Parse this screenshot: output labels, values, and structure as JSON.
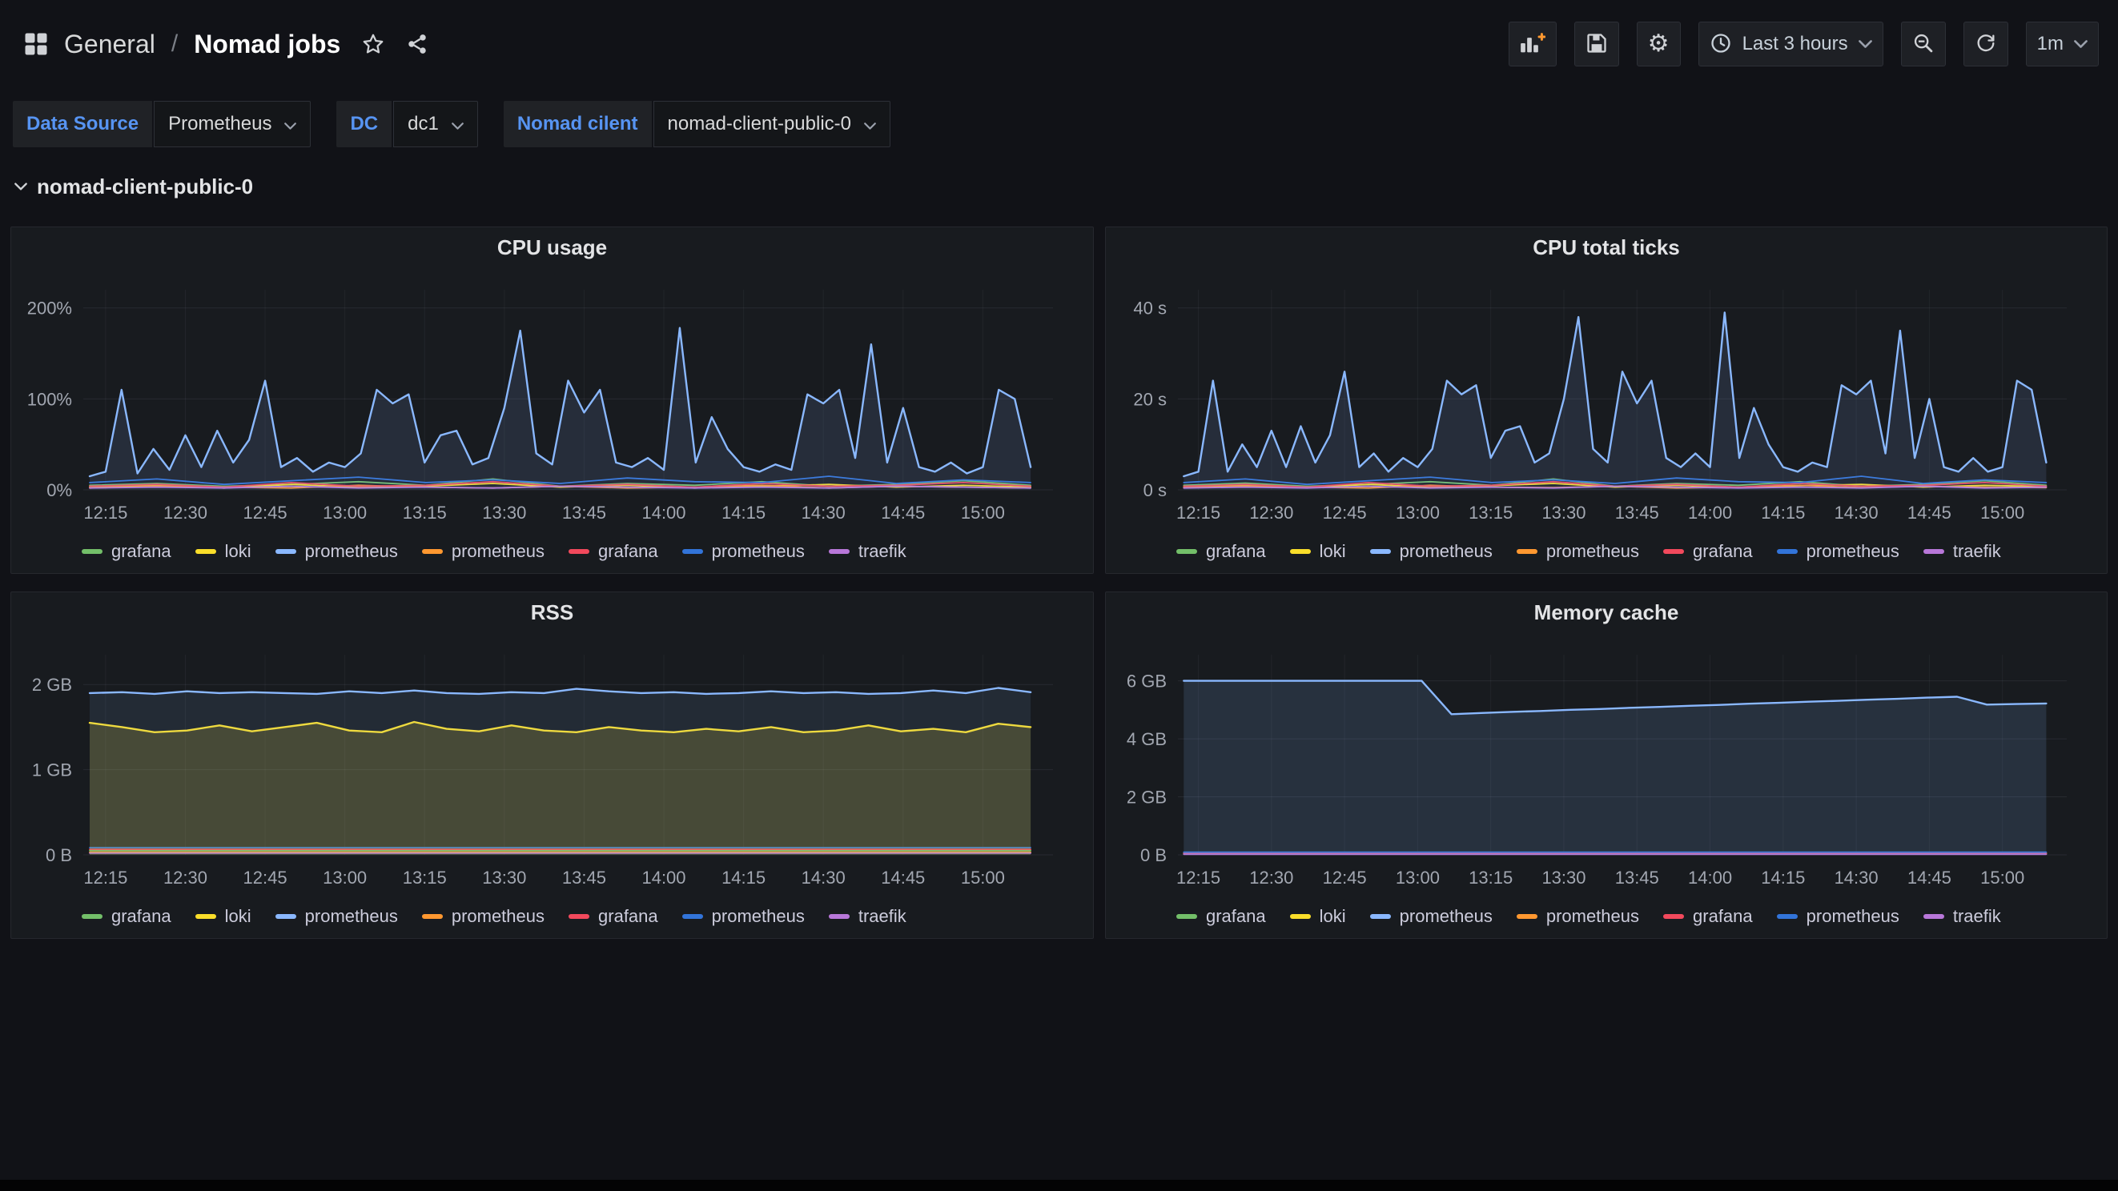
{
  "theme": {
    "bg": "#111217",
    "panel_bg": "#181b1f",
    "panel_border": "#26282e",
    "text": "#d8d9da",
    "muted": "#a2a7b1",
    "accent_blue": "#5794f2",
    "grid": "rgba(204,204,220,0.09)",
    "plus_orange": "#ff9830"
  },
  "header": {
    "breadcrumb": {
      "folder": "General",
      "separator": "/",
      "title": "Nomad jobs"
    },
    "icons": [
      "apps-grid",
      "star",
      "share",
      "add-panel",
      "save",
      "settings-gear",
      "clock",
      "chevron-down",
      "zoom-out",
      "refresh"
    ],
    "toolbar": {
      "time_range": "Last 3 hours",
      "refresh_interval": "1m"
    }
  },
  "variables": [
    {
      "label": "Data Source",
      "value": "Prometheus"
    },
    {
      "label": "DC",
      "value": "dc1"
    },
    {
      "label": "Nomad cilent",
      "value": "nomad-client-public-0"
    }
  ],
  "row": {
    "title": "nomad-client-public-0"
  },
  "legend": {
    "items": [
      {
        "label": "grafana",
        "color": "#73bf69"
      },
      {
        "label": "loki",
        "color": "#fade2a"
      },
      {
        "label": "prometheus",
        "color": "#8ab8ff"
      },
      {
        "label": "prometheus",
        "color": "#ff9830"
      },
      {
        "label": "grafana",
        "color": "#f2495c"
      },
      {
        "label": "prometheus",
        "color": "#3274d9"
      },
      {
        "label": "traefik",
        "color": "#b877d9"
      }
    ]
  },
  "chart_data": [
    {
      "type": "line",
      "title": "CPU usage",
      "unit": "percent",
      "x_domain": [
        12.18,
        15.22
      ],
      "series_x_range": [
        12.2,
        15.15
      ],
      "x_ticks": [
        {
          "v": 12.25,
          "label": "12:15"
        },
        {
          "v": 12.5,
          "label": "12:30"
        },
        {
          "v": 12.75,
          "label": "12:45"
        },
        {
          "v": 13,
          "label": "13:00"
        },
        {
          "v": 13.25,
          "label": "13:15"
        },
        {
          "v": 13.5,
          "label": "13:30"
        },
        {
          "v": 13.75,
          "label": "13:45"
        },
        {
          "v": 14,
          "label": "14:00"
        },
        {
          "v": 14.25,
          "label": "14:15"
        },
        {
          "v": 14.5,
          "label": "14:30"
        },
        {
          "v": 14.75,
          "label": "14:45"
        },
        {
          "v": 15,
          "label": "15:00"
        }
      ],
      "y_max": 220,
      "y_ticks": [
        {
          "v": 0,
          "label": "0%"
        },
        {
          "v": 100,
          "label": "100%"
        },
        {
          "v": 200,
          "label": "200%"
        }
      ],
      "series": [
        {
          "name": "grafana",
          "color": "#73bf69",
          "width": 1.8,
          "fill_opacity": 0,
          "values": [
            5,
            7,
            4,
            6,
            9,
            5,
            12,
            4,
            7,
            5,
            9,
            4,
            6,
            10,
            5
          ]
        },
        {
          "name": "loki",
          "color": "#fade2a",
          "width": 1.8,
          "fill_opacity": 0,
          "values": [
            3,
            5,
            2,
            6,
            3,
            4,
            7,
            3,
            5,
            2,
            4,
            6,
            3,
            5,
            3
          ]
        },
        {
          "name": "prometheus",
          "color": "#ff9830",
          "width": 1.8,
          "fill_opacity": 0,
          "values": [
            2,
            4,
            3,
            2,
            5,
            3,
            2,
            4,
            2,
            3,
            5,
            2,
            4,
            3,
            2
          ]
        },
        {
          "name": "grafana",
          "color": "#f2495c",
          "width": 1.8,
          "fill_opacity": 0,
          "values": [
            4,
            6,
            3,
            8,
            4,
            5,
            9,
            4,
            6,
            3,
            7,
            4,
            5,
            8,
            4
          ]
        },
        {
          "name": "prometheus",
          "color": "#3274d9",
          "width": 1.8,
          "fill_opacity": 0,
          "values": [
            8,
            12,
            6,
            10,
            14,
            8,
            11,
            7,
            13,
            9,
            8,
            15,
            7,
            11,
            8
          ]
        },
        {
          "name": "traefik",
          "color": "#b877d9",
          "width": 1.8,
          "fill_opacity": 0,
          "values": [
            2,
            3,
            2,
            4,
            2,
            3,
            2,
            4,
            3,
            2,
            3,
            2,
            4,
            3,
            2
          ]
        },
        {
          "name": "prometheus",
          "color": "#8ab8ff",
          "width": 2.4,
          "fill_opacity": 0.12,
          "values": [
            15,
            20,
            110,
            18,
            45,
            22,
            60,
            25,
            65,
            30,
            55,
            120,
            25,
            35,
            20,
            30,
            25,
            40,
            110,
            95,
            105,
            30,
            60,
            65,
            28,
            35,
            90,
            175,
            40,
            28,
            120,
            85,
            110,
            30,
            25,
            35,
            22,
            178,
            30,
            80,
            45,
            25,
            20,
            28,
            22,
            105,
            95,
            110,
            35,
            160,
            30,
            90,
            25,
            20,
            30,
            18,
            25,
            110,
            100,
            25
          ]
        }
      ]
    },
    {
      "type": "line",
      "title": "CPU total ticks",
      "unit": "seconds",
      "x_domain": [
        12.18,
        15.22
      ],
      "series_x_range": [
        12.2,
        15.15
      ],
      "x_ticks": [
        {
          "v": 12.25,
          "label": "12:15"
        },
        {
          "v": 12.5,
          "label": "12:30"
        },
        {
          "v": 12.75,
          "label": "12:45"
        },
        {
          "v": 13,
          "label": "13:00"
        },
        {
          "v": 13.25,
          "label": "13:15"
        },
        {
          "v": 13.5,
          "label": "13:30"
        },
        {
          "v": 13.75,
          "label": "13:45"
        },
        {
          "v": 14,
          "label": "14:00"
        },
        {
          "v": 14.25,
          "label": "14:15"
        },
        {
          "v": 14.5,
          "label": "14:30"
        },
        {
          "v": 14.75,
          "label": "14:45"
        },
        {
          "v": 15,
          "label": "15:00"
        }
      ],
      "y_max": 44,
      "y_ticks": [
        {
          "v": 0,
          "label": "0 s"
        },
        {
          "v": 20,
          "label": "20 s"
        },
        {
          "v": 40,
          "label": "40 s"
        }
      ],
      "series": [
        {
          "name": "grafana",
          "color": "#73bf69",
          "width": 1.8,
          "fill_opacity": 0,
          "values": [
            1,
            1.5,
            0.8,
            1.2,
            1.8,
            1,
            2.4,
            0.8,
            1.4,
            1,
            1.8,
            0.8,
            1.2,
            2,
            1
          ]
        },
        {
          "name": "loki",
          "color": "#fade2a",
          "width": 1.8,
          "fill_opacity": 0,
          "values": [
            0.6,
            1,
            0.5,
            1.2,
            0.6,
            0.9,
            1.4,
            0.6,
            1,
            0.5,
            0.9,
            1.2,
            0.6,
            1,
            0.7
          ]
        },
        {
          "name": "prometheus",
          "color": "#ff9830",
          "width": 1.8,
          "fill_opacity": 0,
          "values": [
            0.5,
            0.8,
            0.6,
            0.4,
            1,
            0.6,
            0.5,
            0.8,
            0.4,
            0.6,
            1,
            0.5,
            0.8,
            0.6,
            0.5
          ]
        },
        {
          "name": "grafana",
          "color": "#f2495c",
          "width": 1.8,
          "fill_opacity": 0,
          "values": [
            0.8,
            1.2,
            0.6,
            1.6,
            0.8,
            1,
            1.8,
            0.8,
            1.2,
            0.6,
            1.4,
            0.8,
            1,
            1.6,
            0.8
          ]
        },
        {
          "name": "prometheus",
          "color": "#3274d9",
          "width": 1.8,
          "fill_opacity": 0,
          "values": [
            1.6,
            2.4,
            1.2,
            2,
            2.8,
            1.6,
            2.2,
            1.4,
            2.6,
            1.8,
            1.6,
            3,
            1.4,
            2.2,
            1.6
          ]
        },
        {
          "name": "traefik",
          "color": "#b877d9",
          "width": 1.8,
          "fill_opacity": 0,
          "values": [
            0.4,
            0.6,
            0.4,
            0.8,
            0.4,
            0.6,
            0.4,
            0.8,
            0.6,
            0.4,
            0.6,
            0.4,
            0.8,
            0.4,
            0.6
          ]
        },
        {
          "name": "prometheus",
          "color": "#8ab8ff",
          "width": 2.4,
          "fill_opacity": 0.12,
          "values": [
            3,
            4,
            24,
            4,
            10,
            5,
            13,
            5,
            14,
            6,
            12,
            26,
            5,
            8,
            4,
            7,
            5,
            9,
            24,
            21,
            23,
            7,
            13,
            14,
            6,
            8,
            20,
            38,
            9,
            6,
            26,
            19,
            24,
            7,
            5,
            8,
            5,
            39,
            7,
            18,
            10,
            5,
            4,
            6,
            5,
            23,
            21,
            24,
            8,
            35,
            7,
            20,
            5,
            4,
            7,
            4,
            5,
            24,
            22,
            6
          ]
        }
      ]
    },
    {
      "type": "area",
      "title": "RSS",
      "unit": "bytes_gb",
      "x_domain": [
        12.18,
        15.22
      ],
      "series_x_range": [
        12.2,
        15.15
      ],
      "x_ticks": [
        {
          "v": 12.25,
          "label": "12:15"
        },
        {
          "v": 12.5,
          "label": "12:30"
        },
        {
          "v": 12.75,
          "label": "12:45"
        },
        {
          "v": 13,
          "label": "13:00"
        },
        {
          "v": 13.25,
          "label": "13:15"
        },
        {
          "v": 13.5,
          "label": "13:30"
        },
        {
          "v": 13.75,
          "label": "13:45"
        },
        {
          "v": 14,
          "label": "14:00"
        },
        {
          "v": 14.25,
          "label": "14:15"
        },
        {
          "v": 14.5,
          "label": "14:30"
        },
        {
          "v": 14.75,
          "label": "14:45"
        },
        {
          "v": 15,
          "label": "15:00"
        }
      ],
      "y_max": 2.35,
      "y_ticks": [
        {
          "v": 0,
          "label": "0 B"
        },
        {
          "v": 1,
          "label": "1 GB"
        },
        {
          "v": 2,
          "label": "2 GB"
        }
      ],
      "series": [
        {
          "name": "grafana",
          "color": "#73bf69",
          "width": 1.8,
          "fill_opacity": 0,
          "values": [
            0.05,
            0.05,
            0.05,
            0.05,
            0.05,
            0.05,
            0.05,
            0.05
          ]
        },
        {
          "name": "prometheus",
          "color": "#ff9830",
          "width": 1.8,
          "fill_opacity": 0,
          "values": [
            0.03,
            0.03,
            0.03,
            0.03,
            0.03,
            0.03,
            0.03,
            0.03
          ]
        },
        {
          "name": "grafana",
          "color": "#f2495c",
          "width": 1.8,
          "fill_opacity": 0,
          "values": [
            0.065,
            0.065,
            0.065,
            0.065,
            0.065,
            0.065,
            0.065,
            0.065
          ]
        },
        {
          "name": "prometheus",
          "color": "#3274d9",
          "width": 1.8,
          "fill_opacity": 0,
          "values": [
            0.085,
            0.085,
            0.085,
            0.085,
            0.085,
            0.085,
            0.085,
            0.085
          ]
        },
        {
          "name": "traefik",
          "color": "#b877d9",
          "width": 1.8,
          "fill_opacity": 0,
          "values": [
            0.02,
            0.02,
            0.02,
            0.02,
            0.02,
            0.02,
            0.02,
            0.02
          ]
        },
        {
          "name": "loki",
          "color": "#fade2a",
          "width": 2.4,
          "fill_opacity": 0.18,
          "values": [
            1.55,
            1.5,
            1.44,
            1.46,
            1.52,
            1.45,
            1.5,
            1.55,
            1.46,
            1.44,
            1.56,
            1.48,
            1.45,
            1.52,
            1.46,
            1.44,
            1.5,
            1.46,
            1.44,
            1.48,
            1.45,
            1.5,
            1.44,
            1.46,
            1.52,
            1.45,
            1.48,
            1.44,
            1.54,
            1.5
          ]
        },
        {
          "name": "prometheus",
          "color": "#8ab8ff",
          "width": 2.4,
          "fill_opacity": 0.1,
          "values": [
            1.9,
            1.91,
            1.89,
            1.92,
            1.9,
            1.91,
            1.9,
            1.89,
            1.92,
            1.9,
            1.93,
            1.9,
            1.89,
            1.91,
            1.9,
            1.95,
            1.92,
            1.9,
            1.91,
            1.89,
            1.9,
            1.92,
            1.9,
            1.91,
            1.89,
            1.9,
            1.93,
            1.9,
            1.96,
            1.91
          ]
        }
      ]
    },
    {
      "type": "area",
      "title": "Memory cache",
      "unit": "bytes_gb",
      "x_domain": [
        12.18,
        15.22
      ],
      "series_x_range": [
        12.2,
        15.15
      ],
      "x_ticks": [
        {
          "v": 12.25,
          "label": "12:15"
        },
        {
          "v": 12.5,
          "label": "12:30"
        },
        {
          "v": 12.75,
          "label": "12:45"
        },
        {
          "v": 13,
          "label": "13:00"
        },
        {
          "v": 13.25,
          "label": "13:15"
        },
        {
          "v": 13.5,
          "label": "13:30"
        },
        {
          "v": 13.75,
          "label": "13:45"
        },
        {
          "v": 14,
          "label": "14:00"
        },
        {
          "v": 14.25,
          "label": "14:15"
        },
        {
          "v": 14.5,
          "label": "14:30"
        },
        {
          "v": 14.75,
          "label": "14:45"
        },
        {
          "v": 15,
          "label": "15:00"
        }
      ],
      "y_max": 6.9,
      "y_ticks": [
        {
          "v": 0,
          "label": "0 B"
        },
        {
          "v": 2,
          "label": "2 GB"
        },
        {
          "v": 4,
          "label": "4 GB"
        },
        {
          "v": 6,
          "label": "6 GB"
        }
      ],
      "series": [
        {
          "name": "grafana",
          "color": "#73bf69",
          "width": 1.8,
          "fill_opacity": 0,
          "values": [
            0.04,
            0.04,
            0.04,
            0.04,
            0.04,
            0.04,
            0.04,
            0.04
          ]
        },
        {
          "name": "loki",
          "color": "#fade2a",
          "width": 1.8,
          "fill_opacity": 0,
          "values": [
            0.06,
            0.06,
            0.06,
            0.06,
            0.06,
            0.06,
            0.06,
            0.06
          ]
        },
        {
          "name": "prometheus",
          "color": "#ff9830",
          "width": 1.8,
          "fill_opacity": 0,
          "values": [
            0.03,
            0.03,
            0.03,
            0.03,
            0.03,
            0.03,
            0.03,
            0.03
          ]
        },
        {
          "name": "grafana",
          "color": "#f2495c",
          "width": 1.8,
          "fill_opacity": 0,
          "values": [
            0.05,
            0.05,
            0.05,
            0.05,
            0.05,
            0.05,
            0.05,
            0.05
          ]
        },
        {
          "name": "prometheus",
          "color": "#3274d9",
          "width": 1.8,
          "fill_opacity": 0,
          "values": [
            0.09,
            0.09,
            0.09,
            0.09,
            0.09,
            0.09,
            0.09,
            0.09
          ]
        },
        {
          "name": "traefik",
          "color": "#b877d9",
          "width": 1.8,
          "fill_opacity": 0,
          "values": [
            0.02,
            0.02,
            0.02,
            0.02,
            0.02,
            0.02,
            0.02,
            0.02
          ]
        },
        {
          "name": "prometheus",
          "color": "#8ab8ff",
          "width": 2.4,
          "fill_opacity": 0.14,
          "values": [
            6,
            6,
            6,
            6,
            6,
            6,
            6,
            6,
            6,
            4.85,
            4.89,
            4.93,
            4.96,
            5,
            5.03,
            5.07,
            5.1,
            5.14,
            5.17,
            5.21,
            5.24,
            5.28,
            5.31,
            5.35,
            5.38,
            5.42,
            5.45,
            5.18,
            5.2,
            5.22
          ]
        }
      ]
    }
  ]
}
